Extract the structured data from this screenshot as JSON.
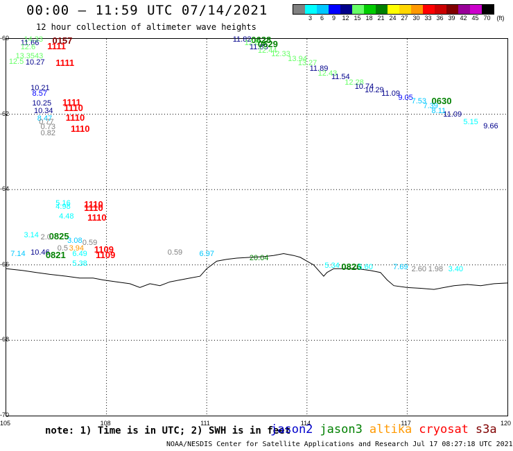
{
  "header": {
    "title": "00:00 – 11:59 UTC 07/14/2021",
    "subtitle": "12 hour collection of altimeter wave heights"
  },
  "color_scale": {
    "unit_label": "(ft)",
    "entries": [
      {
        "label": "",
        "color": "#808080"
      },
      {
        "label": "3",
        "color": "#00ffff"
      },
      {
        "label": "6",
        "color": "#00c8ff"
      },
      {
        "label": "9",
        "color": "#0000ff"
      },
      {
        "label": "12",
        "color": "#00008b"
      },
      {
        "label": "15",
        "color": "#66ff66"
      },
      {
        "label": "18",
        "color": "#00cc00"
      },
      {
        "label": "21",
        "color": "#008000"
      },
      {
        "label": "24",
        "color": "#ffff00"
      },
      {
        "label": "27",
        "color": "#ffd700"
      },
      {
        "label": "30",
        "color": "#ff9900"
      },
      {
        "label": "33",
        "color": "#ff0000"
      },
      {
        "label": "36",
        "color": "#cc0000"
      },
      {
        "label": "39",
        "color": "#800000"
      },
      {
        "label": "42",
        "color": "#990099"
      },
      {
        "label": "45",
        "color": "#cc00cc"
      },
      {
        "label": "70",
        "color": "#000000"
      }
    ]
  },
  "map": {
    "lon_range": [
      105,
      120
    ],
    "lat_range": [
      -70,
      -60
    ],
    "x_ticks": [
      "105",
      "108",
      "111",
      "114",
      "117",
      "120"
    ],
    "y_ticks": [
      "-60",
      "-62",
      "-64",
      "-66",
      "-68",
      "-70"
    ],
    "coastline": [
      [
        105,
        -66.1
      ],
      [
        105.5,
        -66.15
      ],
      [
        105.9,
        -66.2
      ],
      [
        106.3,
        -66.25
      ],
      [
        106.8,
        -66.3
      ],
      [
        107.2,
        -66.35
      ],
      [
        107.6,
        -66.35
      ],
      [
        107.9,
        -66.4
      ],
      [
        108.3,
        -66.45
      ],
      [
        108.7,
        -66.5
      ],
      [
        109.0,
        -66.6
      ],
      [
        109.3,
        -66.5
      ],
      [
        109.6,
        -66.55
      ],
      [
        109.9,
        -66.45
      ],
      [
        110.2,
        -66.4
      ],
      [
        110.5,
        -66.35
      ],
      [
        110.8,
        -66.3
      ],
      [
        111.0,
        -66.1
      ],
      [
        111.3,
        -65.9
      ],
      [
        111.6,
        -65.85
      ],
      [
        111.9,
        -65.82
      ],
      [
        112.3,
        -65.8
      ],
      [
        112.7,
        -65.78
      ],
      [
        113.0,
        -65.75
      ],
      [
        113.3,
        -65.7
      ],
      [
        113.6,
        -65.75
      ],
      [
        113.8,
        -65.8
      ],
      [
        114.0,
        -65.9
      ],
      [
        114.2,
        -66.0
      ],
      [
        114.4,
        -66.2
      ],
      [
        114.5,
        -66.3
      ],
      [
        114.6,
        -66.2
      ],
      [
        114.8,
        -66.1
      ],
      [
        115.0,
        -66.1
      ],
      [
        115.5,
        -66.1
      ],
      [
        115.9,
        -66.15
      ],
      [
        116.2,
        -66.2
      ],
      [
        116.4,
        -66.4
      ],
      [
        116.6,
        -66.55
      ],
      [
        117.0,
        -66.6
      ],
      [
        117.4,
        -66.62
      ],
      [
        117.8,
        -66.65
      ],
      [
        118.1,
        -66.6
      ],
      [
        118.4,
        -66.55
      ],
      [
        118.8,
        -66.52
      ],
      [
        119.2,
        -66.55
      ],
      [
        119.6,
        -66.5
      ],
      [
        120.0,
        -66.48
      ]
    ],
    "observations": [
      {
        "text": "14.33",
        "lon": 105.55,
        "lat": -60.05,
        "color": "#66ff66",
        "kind": "swh"
      },
      {
        "text": "0157",
        "lon": 106.4,
        "lat": -60.05,
        "color": "#800000",
        "kind": "time"
      },
      {
        "text": "11.66",
        "lon": 105.45,
        "lat": -60.15,
        "color": "#00008b",
        "kind": "swh"
      },
      {
        "text": "1111",
        "lon": 106.25,
        "lat": -60.2,
        "color": "#ff0000",
        "kind": "time"
      },
      {
        "text": "12.6",
        "lon": 105.45,
        "lat": -60.25,
        "color": "#66ff66",
        "kind": "swh"
      },
      {
        "text": "13.3543",
        "lon": 105.3,
        "lat": -60.5,
        "color": "#66ff66",
        "kind": "swh"
      },
      {
        "text": "12.5",
        "lon": 105.1,
        "lat": -60.65,
        "color": "#66ff66",
        "kind": "swh"
      },
      {
        "text": "10.27",
        "lon": 105.6,
        "lat": -60.67,
        "color": "#00008b",
        "kind": "swh"
      },
      {
        "text": "1111",
        "lon": 106.5,
        "lat": -60.65,
        "color": "#ff0000",
        "kind": "time"
      },
      {
        "text": "10.21",
        "lon": 105.75,
        "lat": -61.35,
        "color": "#00008b",
        "kind": "swh"
      },
      {
        "text": "8.57",
        "lon": 105.8,
        "lat": -61.5,
        "color": "#0000ff",
        "kind": "swh"
      },
      {
        "text": "1111",
        "lon": 106.7,
        "lat": -61.7,
        "color": "#ff0000",
        "kind": "time"
      },
      {
        "text": "10.25",
        "lon": 105.8,
        "lat": -61.75,
        "color": "#00008b",
        "kind": "swh"
      },
      {
        "text": "1110",
        "lon": 106.75,
        "lat": -61.85,
        "color": "#ff0000",
        "kind": "time"
      },
      {
        "text": "10.34",
        "lon": 105.85,
        "lat": -61.95,
        "color": "#00008b",
        "kind": "swh"
      },
      {
        "text": "1110",
        "lon": 106.8,
        "lat": -62.1,
        "color": "#ff0000",
        "kind": "time"
      },
      {
        "text": "8.47",
        "lon": 105.95,
        "lat": -62.15,
        "color": "#00c8ff",
        "kind": "swh"
      },
      {
        "text": "0.77",
        "lon": 106.0,
        "lat": -62.25,
        "color": "#808080",
        "kind": "swh"
      },
      {
        "text": "0.73",
        "lon": 106.05,
        "lat": -62.38,
        "color": "#808080",
        "kind": "swh"
      },
      {
        "text": "1110",
        "lon": 106.95,
        "lat": -62.4,
        "color": "#ff0000",
        "kind": "time"
      },
      {
        "text": "0.82",
        "lon": 106.05,
        "lat": -62.55,
        "color": "#808080",
        "kind": "swh"
      },
      {
        "text": "11.82",
        "lon": 111.8,
        "lat": -60.05,
        "color": "#00008b",
        "kind": "swh"
      },
      {
        "text": "0628",
        "lon": 112.35,
        "lat": -60.03,
        "color": "#008000",
        "kind": "time"
      },
      {
        "text": "12.8",
        "lon": 112.15,
        "lat": -60.15,
        "color": "#66ff66",
        "kind": "swh"
      },
      {
        "text": "11.83",
        "lon": 112.3,
        "lat": -60.25,
        "color": "#00008b",
        "kind": "swh"
      },
      {
        "text": "0629",
        "lon": 112.55,
        "lat": -60.15,
        "color": "#008000",
        "kind": "time"
      },
      {
        "text": "12.44",
        "lon": 112.55,
        "lat": -60.35,
        "color": "#66ff66",
        "kind": "swh"
      },
      {
        "text": "12.33",
        "lon": 112.95,
        "lat": -60.45,
        "color": "#66ff66",
        "kind": "swh"
      },
      {
        "text": "13.94",
        "lon": 113.45,
        "lat": -60.58,
        "color": "#66ff66",
        "kind": "swh"
      },
      {
        "text": "13.27",
        "lon": 113.75,
        "lat": -60.68,
        "color": "#66ff66",
        "kind": "swh"
      },
      {
        "text": "11.89",
        "lon": 114.1,
        "lat": -60.82,
        "color": "#00008b",
        "kind": "swh"
      },
      {
        "text": "12.43",
        "lon": 114.35,
        "lat": -60.95,
        "color": "#66ff66",
        "kind": "swh"
      },
      {
        "text": "11.54",
        "lon": 114.75,
        "lat": -61.05,
        "color": "#00008b",
        "kind": "swh"
      },
      {
        "text": "12.28",
        "lon": 115.15,
        "lat": -61.2,
        "color": "#66ff66",
        "kind": "swh"
      },
      {
        "text": "10.74",
        "lon": 115.45,
        "lat": -61.3,
        "color": "#00008b",
        "kind": "swh"
      },
      {
        "text": "10.29",
        "lon": 115.75,
        "lat": -61.4,
        "color": "#00008b",
        "kind": "swh"
      },
      {
        "text": "11.09",
        "lon": 116.25,
        "lat": -61.5,
        "color": "#00008b",
        "kind": "swh"
      },
      {
        "text": "9.05",
        "lon": 116.75,
        "lat": -61.6,
        "color": "#0000ff",
        "kind": "swh"
      },
      {
        "text": "7.53",
        "lon": 117.15,
        "lat": -61.7,
        "color": "#00c8ff",
        "kind": "swh"
      },
      {
        "text": "0630",
        "lon": 117.75,
        "lat": -61.65,
        "color": "#008000",
        "kind": "time"
      },
      {
        "text": "7.39",
        "lon": 117.5,
        "lat": -61.82,
        "color": "#00c8ff",
        "kind": "swh"
      },
      {
        "text": "8.11",
        "lon": 117.75,
        "lat": -61.95,
        "color": "#00c8ff",
        "kind": "swh"
      },
      {
        "text": "11.09",
        "lon": 118.1,
        "lat": -62.05,
        "color": "#00008b",
        "kind": "swh"
      },
      {
        "text": "5.15",
        "lon": 118.7,
        "lat": -62.25,
        "color": "#00ffff",
        "kind": "swh"
      },
      {
        "text": "9.66",
        "lon": 119.3,
        "lat": -62.35,
        "color": "#00008b",
        "kind": "swh"
      },
      {
        "text": "5.16",
        "lon": 106.5,
        "lat": -64.4,
        "color": "#00ffff",
        "kind": "swh"
      },
      {
        "text": "1110",
        "lon": 107.35,
        "lat": -64.4,
        "color": "#ff0000",
        "kind": "time"
      },
      {
        "text": "4.98",
        "lon": 106.5,
        "lat": -64.5,
        "color": "#00ffff",
        "kind": "swh"
      },
      {
        "text": "1110",
        "lon": 107.35,
        "lat": -64.5,
        "color": "#ff0000",
        "kind": "time"
      },
      {
        "text": "4.48",
        "lon": 106.6,
        "lat": -64.75,
        "color": "#00ffff",
        "kind": "swh"
      },
      {
        "text": "1110",
        "lon": 107.45,
        "lat": -64.75,
        "color": "#ff0000",
        "kind": "time"
      },
      {
        "text": "3.14",
        "lon": 105.55,
        "lat": -65.25,
        "color": "#00ffff",
        "kind": "swh"
      },
      {
        "text": "0825",
        "lon": 106.3,
        "lat": -65.25,
        "color": "#008000",
        "kind": "time"
      },
      {
        "text": "2.0",
        "lon": 106.05,
        "lat": -65.3,
        "color": "#808080",
        "kind": "swh"
      },
      {
        "text": "3.08",
        "lon": 106.85,
        "lat": -65.4,
        "color": "#00c8ff",
        "kind": "swh"
      },
      {
        "text": "0.59",
        "lon": 107.3,
        "lat": -65.45,
        "color": "#808080",
        "kind": "swh"
      },
      {
        "text": "0.5",
        "lon": 106.55,
        "lat": -65.6,
        "color": "#808080",
        "kind": "swh"
      },
      {
        "text": "3.94",
        "lon": 106.9,
        "lat": -65.6,
        "color": "#ff9900",
        "kind": "swh"
      },
      {
        "text": "1109",
        "lon": 107.65,
        "lat": -65.6,
        "color": "#ff0000",
        "kind": "time"
      },
      {
        "text": "7.14",
        "lon": 105.15,
        "lat": -65.75,
        "color": "#00c8ff",
        "kind": "swh"
      },
      {
        "text": "10.46",
        "lon": 105.75,
        "lat": -65.7,
        "color": "#00008b",
        "kind": "swh"
      },
      {
        "text": "0821",
        "lon": 106.2,
        "lat": -65.75,
        "color": "#008000",
        "kind": "time"
      },
      {
        "text": "6.49",
        "lon": 107.0,
        "lat": -65.75,
        "color": "#00ffff",
        "kind": "swh"
      },
      {
        "text": "1109",
        "lon": 107.7,
        "lat": -65.75,
        "color": "#ff0000",
        "kind": "time"
      },
      {
        "text": "5.38",
        "lon": 107.0,
        "lat": -66.0,
        "color": "#00ffff",
        "kind": "swh"
      },
      {
        "text": "0.59",
        "lon": 109.85,
        "lat": -65.7,
        "color": "#808080",
        "kind": "swh"
      },
      {
        "text": "6.97",
        "lon": 110.8,
        "lat": -65.75,
        "color": "#00c8ff",
        "kind": "swh"
      },
      {
        "text": "20.04",
        "lon": 112.3,
        "lat": -65.85,
        "color": "#008000",
        "kind": "swh"
      },
      {
        "text": "5.34",
        "lon": 114.55,
        "lat": -66.05,
        "color": "#00ffff",
        "kind": "swh"
      },
      {
        "text": "0826",
        "lon": 115.05,
        "lat": -66.05,
        "color": "#008000",
        "kind": "time"
      },
      {
        "text": "5.60",
        "lon": 115.55,
        "lat": -66.1,
        "color": "#00ffff",
        "kind": "swh"
      },
      {
        "text": "7.69",
        "lon": 116.6,
        "lat": -66.1,
        "color": "#00c8ff",
        "kind": "swh"
      },
      {
        "text": "2.60",
        "lon": 117.15,
        "lat": -66.15,
        "color": "#808080",
        "kind": "swh"
      },
      {
        "text": "1.98",
        "lon": 117.65,
        "lat": -66.15,
        "color": "#808080",
        "kind": "swh"
      },
      {
        "text": "3.40",
        "lon": 118.25,
        "lat": -66.15,
        "color": "#00ffff",
        "kind": "swh"
      }
    ]
  },
  "footer": {
    "note": "note: 1) Time is in UTC; 2) SWH is in feet",
    "satellites": [
      {
        "name": "jason2",
        "color": "#0000cc"
      },
      {
        "name": "jason3",
        "color": "#008000"
      },
      {
        "name": "altika",
        "color": "#ff9900"
      },
      {
        "name": "cryosat",
        "color": "#ff0000"
      },
      {
        "name": "s3a",
        "color": "#800000"
      }
    ],
    "credit": "NOAA/NESDIS Center for Satellite Applications and Research    Jul 17 08:27:18 UTC 2021"
  }
}
